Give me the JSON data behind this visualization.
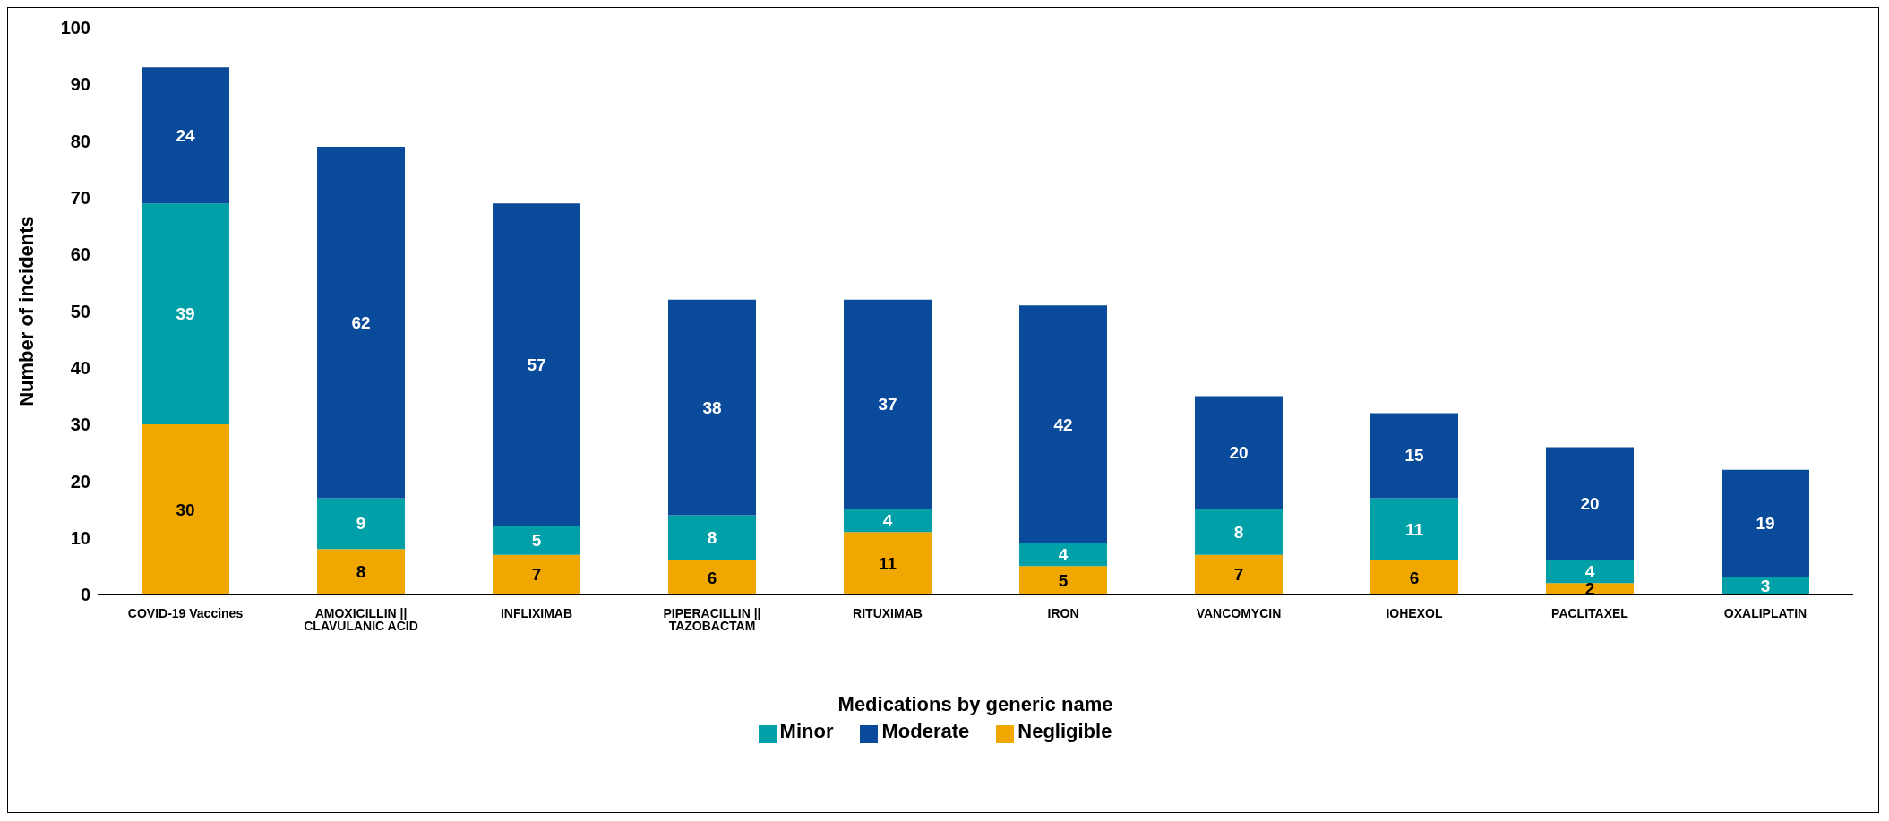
{
  "chart_data": {
    "type": "bar",
    "stacked": true,
    "xlabel": "Medications by  generic name",
    "ylabel": "Number of incidents",
    "categories": [
      "COVID-19 Vaccines",
      "AMOXICILLIN || CLAVULANIC ACID",
      "INFLIXIMAB",
      "PIPERACILLIN || TAZOBACTAM",
      "RITUXIMAB",
      "IRON",
      "VANCOMYCIN",
      "IOHEXOL",
      "PACLITAXEL",
      "OXALIPLATIN"
    ],
    "series": [
      {
        "name": "Negligible",
        "color": "#f0a800",
        "values": [
          30,
          8,
          7,
          6,
          11,
          5,
          7,
          6,
          2,
          null
        ],
        "value_labels": [
          "30",
          "8",
          "7",
          "6",
          "11",
          "5",
          "7",
          "6",
          "2",
          null
        ]
      },
      {
        "name": "Minor",
        "color": "#00a0a8",
        "values": [
          39,
          9,
          5,
          8,
          4,
          4,
          8,
          11,
          4,
          3
        ],
        "value_labels": [
          "39",
          "9",
          "5",
          "8",
          "4",
          "4",
          "8",
          "11",
          "4",
          "3"
        ]
      },
      {
        "name": "Moderate",
        "color": "#0a4a9a",
        "values": [
          24,
          62,
          57,
          38,
          37,
          42,
          20,
          15,
          20,
          19
        ],
        "value_labels": [
          "24",
          "62",
          "57",
          "38",
          "37",
          "42",
          "20",
          "15",
          "20",
          "19"
        ]
      }
    ],
    "ylim": [
      0,
      100
    ],
    "yticks": [
      0,
      10,
      20,
      30,
      40,
      50,
      60,
      70,
      80,
      90,
      100
    ],
    "grid": false,
    "legend": "bottom"
  }
}
